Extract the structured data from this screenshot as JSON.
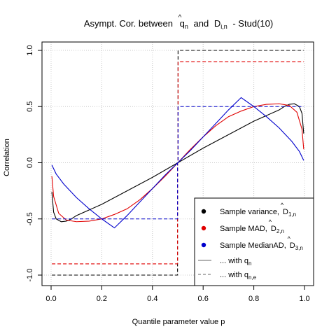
{
  "chart_data": {
    "type": "line",
    "title": {
      "pre": "Asympt. Cor. between",
      "q": "q",
      "q_sub": "n",
      "mid": "and",
      "d": "D",
      "d_sub": "i,n",
      "post": "- Stud(10)"
    },
    "xlabel": "Quantile parameter value p",
    "ylabel": "Correlation",
    "xlim": [
      0,
      1
    ],
    "ylim": [
      -1,
      1
    ],
    "xticks": [
      "0.0",
      "0.2",
      "0.4",
      "0.6",
      "0.8",
      "1.0"
    ],
    "yticks": [
      "-1.0",
      "-0.5",
      "0.0",
      "0.5",
      "1.0"
    ],
    "grid": true,
    "legend_position": "bottom-right",
    "legend": [
      {
        "name": "Sample variance,",
        "sym": "D",
        "sub": "1,n",
        "color": "#000000",
        "marker": "dot"
      },
      {
        "name": "Sample MAD,",
        "sym": "D",
        "sub": "2,n",
        "color": "#e00000",
        "marker": "dot"
      },
      {
        "name": "Sample MedianAD,",
        "sym": "D",
        "sub": "3,n",
        "color": "#0000cc",
        "marker": "dot"
      },
      {
        "name": "... with q",
        "sub": "n",
        "color": "#666666",
        "marker": "solid-line"
      },
      {
        "name": "... with q",
        "sub": "n,e",
        "color": "#666666",
        "marker": "dashed-line"
      }
    ],
    "series": [
      {
        "color": "#000000",
        "dash": false,
        "x": [
          0.003,
          0.01,
          0.02,
          0.04,
          0.06,
          0.08,
          0.1,
          0.2,
          0.3,
          0.4,
          0.5,
          0.6,
          0.7,
          0.8,
          0.9,
          0.92,
          0.94,
          0.96,
          0.98,
          0.99,
          0.997
        ],
        "y": [
          -0.26,
          -0.44,
          -0.5,
          -0.525,
          -0.52,
          -0.5,
          -0.47,
          -0.37,
          -0.25,
          -0.13,
          0.0,
          0.13,
          0.25,
          0.37,
          0.47,
          0.5,
          0.52,
          0.525,
          0.5,
          0.44,
          0.26
        ]
      },
      {
        "color": "#e00000",
        "dash": false,
        "x": [
          0.003,
          0.01,
          0.03,
          0.06,
          0.1,
          0.15,
          0.2,
          0.25,
          0.3,
          0.35,
          0.4,
          0.45,
          0.5,
          0.55,
          0.6,
          0.65,
          0.7,
          0.75,
          0.8,
          0.85,
          0.9,
          0.94,
          0.97,
          0.99,
          0.997
        ],
        "y": [
          -0.12,
          -0.3,
          -0.45,
          -0.51,
          -0.525,
          -0.52,
          -0.5,
          -0.46,
          -0.41,
          -0.33,
          -0.23,
          -0.12,
          0.0,
          0.12,
          0.23,
          0.33,
          0.41,
          0.46,
          0.5,
          0.52,
          0.525,
          0.51,
          0.45,
          0.3,
          0.12
        ]
      },
      {
        "color": "#0000cc",
        "dash": false,
        "x": [
          0.003,
          0.02,
          0.05,
          0.1,
          0.15,
          0.2,
          0.25,
          0.3,
          0.35,
          0.4,
          0.45,
          0.5,
          0.55,
          0.6,
          0.65,
          0.7,
          0.75,
          0.8,
          0.85,
          0.9,
          0.95,
          0.98,
          0.997
        ],
        "y": [
          -0.02,
          -0.1,
          -0.19,
          -0.31,
          -0.41,
          -0.5,
          -0.58,
          -0.47,
          -0.35,
          -0.23,
          -0.11,
          0.0,
          0.11,
          0.23,
          0.35,
          0.47,
          0.58,
          0.5,
          0.41,
          0.31,
          0.19,
          0.1,
          0.02
        ]
      },
      {
        "color": "#000000",
        "dash": true,
        "x": [
          0.003,
          0.499,
          0.499,
          0.501,
          0.501,
          0.997
        ],
        "y": [
          -1.0,
          -1.0,
          0.0,
          0.0,
          1.0,
          1.0
        ]
      },
      {
        "color": "#e00000",
        "dash": true,
        "x": [
          0.003,
          0.499,
          0.499,
          0.501,
          0.501,
          0.997
        ],
        "y": [
          -0.9,
          -0.9,
          0.0,
          0.0,
          0.9,
          0.9
        ]
      },
      {
        "color": "#0000cc",
        "dash": true,
        "x": [
          0.003,
          0.499,
          0.499,
          0.501,
          0.501,
          0.997
        ],
        "y": [
          -0.5,
          -0.5,
          0.0,
          0.0,
          0.5,
          0.5
        ]
      }
    ]
  }
}
